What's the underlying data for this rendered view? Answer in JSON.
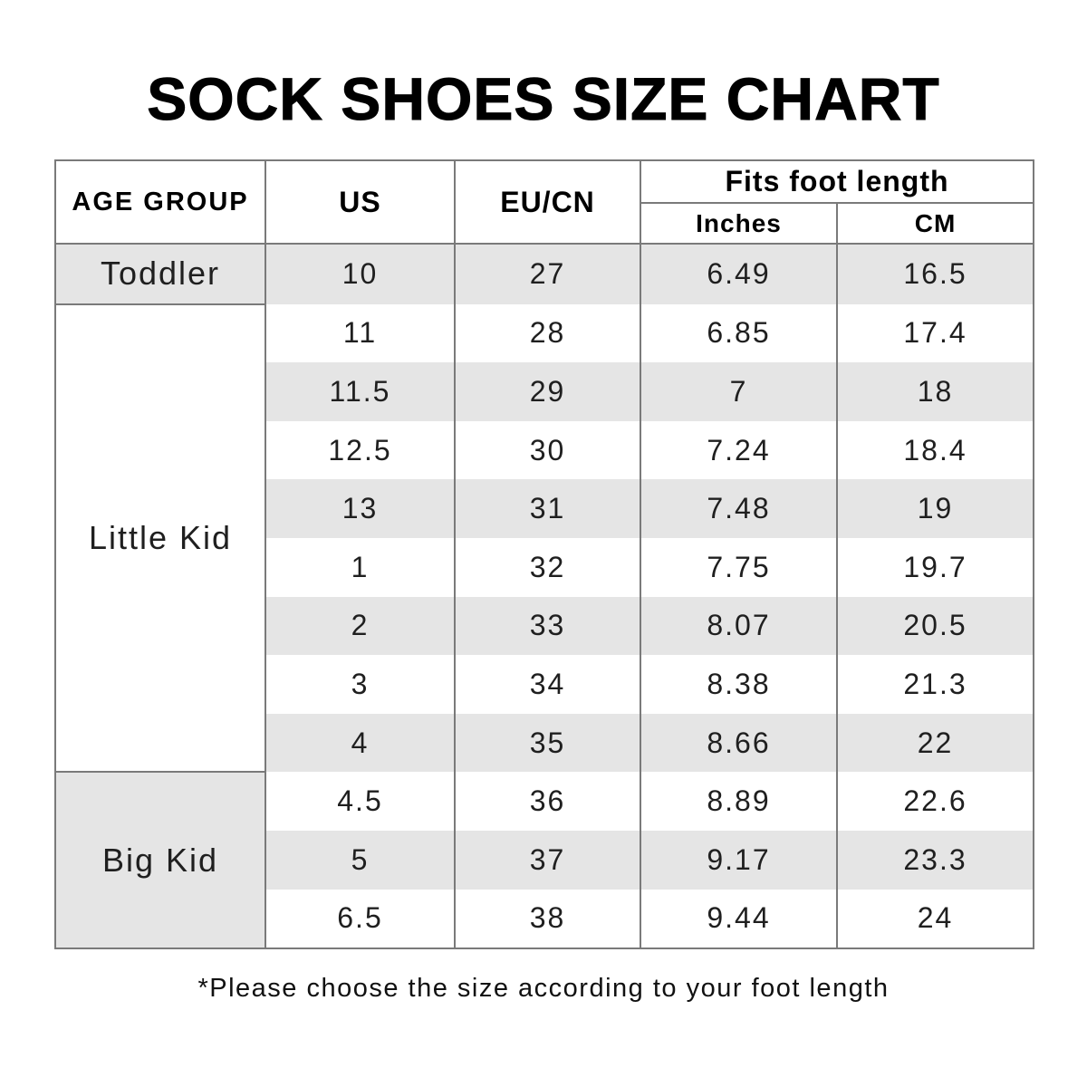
{
  "title": "SOCK SHOES SIZE CHART",
  "footnote": "*Please choose the size according to your foot length",
  "colors": {
    "band_gray": "#e5e5e5",
    "border_gray": "#7a7a7a",
    "text_black": "#000000"
  },
  "table": {
    "headers": {
      "age_group": "AGE GROUP",
      "us": "US",
      "eu_cn": "EU/CN",
      "fits": "Fits foot length",
      "inches": "Inches",
      "cm": "CM"
    },
    "groups": [
      {
        "label": "Toddler",
        "rows": [
          {
            "us": "10",
            "eu_cn": "27",
            "inches": "6.49",
            "cm": "16.5"
          }
        ]
      },
      {
        "label": "Little Kid",
        "rows": [
          {
            "us": "11",
            "eu_cn": "28",
            "inches": "6.85",
            "cm": "17.4"
          },
          {
            "us": "11.5",
            "eu_cn": "29",
            "inches": "7",
            "cm": "18"
          },
          {
            "us": "12.5",
            "eu_cn": "30",
            "inches": "7.24",
            "cm": "18.4"
          },
          {
            "us": "13",
            "eu_cn": "31",
            "inches": "7.48",
            "cm": "19"
          },
          {
            "us": "1",
            "eu_cn": "32",
            "inches": "7.75",
            "cm": "19.7"
          },
          {
            "us": "2",
            "eu_cn": "33",
            "inches": "8.07",
            "cm": "20.5"
          },
          {
            "us": "3",
            "eu_cn": "34",
            "inches": "8.38",
            "cm": "21.3"
          },
          {
            "us": "4",
            "eu_cn": "35",
            "inches": "8.66",
            "cm": "22"
          }
        ]
      },
      {
        "label": "Big Kid",
        "rows": [
          {
            "us": "4.5",
            "eu_cn": "36",
            "inches": "8.89",
            "cm": "22.6"
          },
          {
            "us": "5",
            "eu_cn": "37",
            "inches": "9.17",
            "cm": "23.3"
          },
          {
            "us": "6.5",
            "eu_cn": "38",
            "inches": "9.44",
            "cm": "24"
          }
        ]
      }
    ]
  }
}
